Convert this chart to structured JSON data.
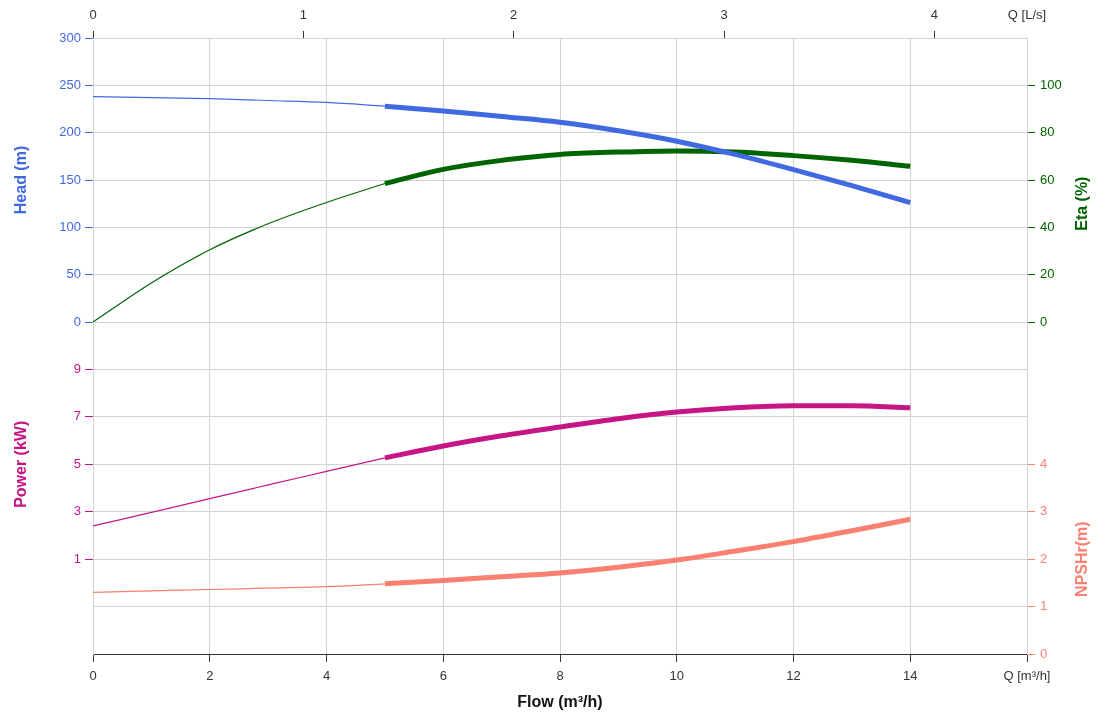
{
  "chart_data": [
    {
      "type": "line",
      "xlim": [
        0,
        16
      ],
      "xticks": [
        0,
        2,
        4,
        6,
        8,
        10,
        12,
        14
      ],
      "tick_labels": "y",
      "x2lim": [
        0,
        4.44
      ],
      "x2ticks": [
        0,
        1,
        2,
        3,
        4
      ],
      "x2label": "Q [L/s]",
      "ylabel": "Head (m)",
      "y2label": "Eta (%)",
      "ylim": [
        0,
        300
      ],
      "yticks": [
        0,
        50,
        100,
        150,
        200,
        250,
        300
      ],
      "y2lim": [
        0,
        120
      ],
      "y2ticks": [
        0,
        20,
        40,
        60,
        80,
        100
      ],
      "grid": true,
      "series": [
        {
          "color": "#4169e1",
          "axis": "y",
          "x": [
            0,
            1,
            2,
            3,
            4,
            5
          ],
          "values": [
            238,
            237,
            236,
            234,
            232,
            228
          ]
        },
        {
          "color": "#4169e1",
          "axis": "y",
          "x": [
            5,
            6,
            7,
            8,
            9,
            10,
            11,
            12,
            13,
            14
          ],
          "values": [
            228,
            223,
            217,
            211,
            202,
            191,
            177,
            161,
            144,
            126
          ]
        },
        {
          "color": "#006400",
          "axis": "y2",
          "x": [
            0,
            1,
            2,
            3,
            4,
            5
          ],
          "values": [
            0,
            16.5,
            30.5,
            41.5,
            50.5,
            58.5
          ]
        },
        {
          "color": "#006400",
          "axis": "y2",
          "x": [
            5,
            6,
            7,
            8,
            9,
            10,
            11,
            12,
            13,
            14
          ],
          "values": [
            58.5,
            64.5,
            68.3,
            70.8,
            71.8,
            72.3,
            71.8,
            70.3,
            68.3,
            65.8
          ]
        }
      ]
    },
    {
      "type": "line",
      "xlim": [
        0,
        16
      ],
      "xticks": [
        0,
        2,
        4,
        6,
        8,
        10,
        12,
        14,
        {
          "value": 16,
          "label": "Q [m³/h]"
        }
      ],
      "xlabel": "Flow (m³/h)",
      "ylabel": "Power (kW)",
      "y2label": "NPSHr(m)",
      "ylim": [
        -3,
        11
      ],
      "yticks": [
        1,
        3,
        5,
        7,
        9
      ],
      "y2lim": [
        0,
        7
      ],
      "y2ticks": [
        0,
        1,
        2,
        3,
        4
      ],
      "grid": true,
      "series": [
        {
          "color": "#c71585",
          "axis": "y",
          "x": [
            0,
            1,
            2,
            3,
            4,
            5
          ],
          "values": [
            2.4,
            2.97,
            3.55,
            4.13,
            4.7,
            5.27
          ]
        },
        {
          "color": "#c71585",
          "axis": "y",
          "x": [
            5,
            6,
            7,
            8,
            9,
            10,
            11,
            12,
            13,
            14
          ],
          "values": [
            5.27,
            5.77,
            6.2,
            6.57,
            6.92,
            7.2,
            7.38,
            7.47,
            7.47,
            7.38
          ]
        },
        {
          "color": "#fa8072",
          "axis": "y2",
          "x": [
            0,
            1,
            2,
            3,
            4,
            5
          ],
          "values": [
            1.3,
            1.33,
            1.36,
            1.39,
            1.42,
            1.48
          ]
        },
        {
          "color": "#fa8072",
          "axis": "y2",
          "x": [
            5,
            6,
            7,
            8,
            9,
            10,
            11,
            12,
            13,
            14
          ],
          "values": [
            1.48,
            1.55,
            1.63,
            1.71,
            1.83,
            1.98,
            2.17,
            2.37,
            2.6,
            2.84
          ]
        }
      ]
    }
  ]
}
